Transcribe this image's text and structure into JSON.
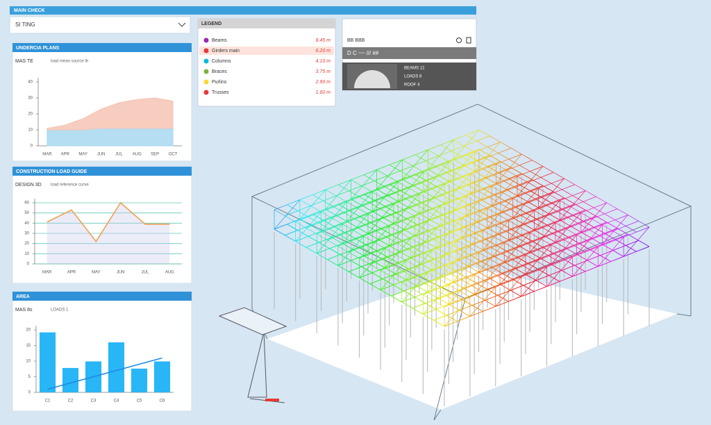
{
  "header": {
    "title": "MAIN CHECK"
  },
  "dropdown": {
    "value": "SI TING"
  },
  "charts": [
    {
      "title": "UNDERCIA PLANS",
      "subtitle": "MAS TE",
      "note": "load mean source lb",
      "type": "area",
      "categories": [
        "MAR",
        "APR",
        "MAY",
        "JUN",
        "JUL",
        "AUG",
        "SEP",
        "OCT"
      ],
      "ylim": [
        0,
        40
      ],
      "yticks": [
        0,
        10,
        20,
        30,
        40
      ],
      "grid": false,
      "series": [
        {
          "color": "#a8d8f0",
          "values": [
            10,
            10,
            10,
            11,
            11,
            11,
            11,
            11
          ]
        },
        {
          "color": "#f5c4b4",
          "values": [
            1,
            3,
            7,
            12,
            16,
            18,
            19,
            17
          ]
        }
      ]
    },
    {
      "title": "CONSTRUCTION LOAD GUIDE",
      "subtitle": "DESIGN 3D",
      "note": "load reference curve",
      "type": "line",
      "categories": [
        "MAR",
        "APR",
        "MAY",
        "JUN",
        "JUL",
        "AUG"
      ],
      "ylim": [
        0,
        60
      ],
      "yticks": [
        0,
        10,
        20,
        30,
        40,
        50,
        60
      ],
      "grid": true,
      "series": [
        {
          "color": "#f0a050",
          "values": [
            41,
            53,
            22,
            60,
            39,
            39
          ]
        }
      ]
    },
    {
      "title": "AREA",
      "subtitle": "MAS 8s",
      "note": "LOADS 1",
      "type": "bar",
      "categories": [
        "C1",
        "C2",
        "C3",
        "C4",
        "C5",
        "C6"
      ],
      "ylim": [
        0,
        20
      ],
      "yticks": [
        0,
        5,
        10,
        15,
        20
      ],
      "grid": false,
      "series": [
        {
          "color": "#29b6f6",
          "values": [
            19.2,
            7.8,
            9.9,
            16,
            7.6,
            9.9
          ]
        },
        {
          "type": "line",
          "color": "#1e88e5",
          "values": [
            1,
            3,
            5,
            7,
            9,
            11
          ]
        }
      ]
    }
  ],
  "legend_panel": {
    "title": "LEGEND",
    "highlight": 1,
    "items": [
      {
        "label": "Beams",
        "value": "8.45 m",
        "color": "#9c27b0"
      },
      {
        "label": "Girders main",
        "value": "6.20 m",
        "color": "#e53935"
      },
      {
        "label": "Columns",
        "value": "4.10 m",
        "color": "#00bcd4"
      },
      {
        "label": "Braces",
        "value": "3.75 m",
        "color": "#7cb342"
      },
      {
        "label": "Purlins",
        "value": "2.90 m",
        "color": "#fdd835"
      },
      {
        "label": "Trusses",
        "value": "1.60 m",
        "color": "#e53935"
      }
    ]
  },
  "view_panel": {
    "title": "BB BBB",
    "toolbar": "D C  ~~ /// ##",
    "readout": [
      "BEAMS 12",
      "LOADS 8",
      "ROOF 4"
    ]
  }
}
